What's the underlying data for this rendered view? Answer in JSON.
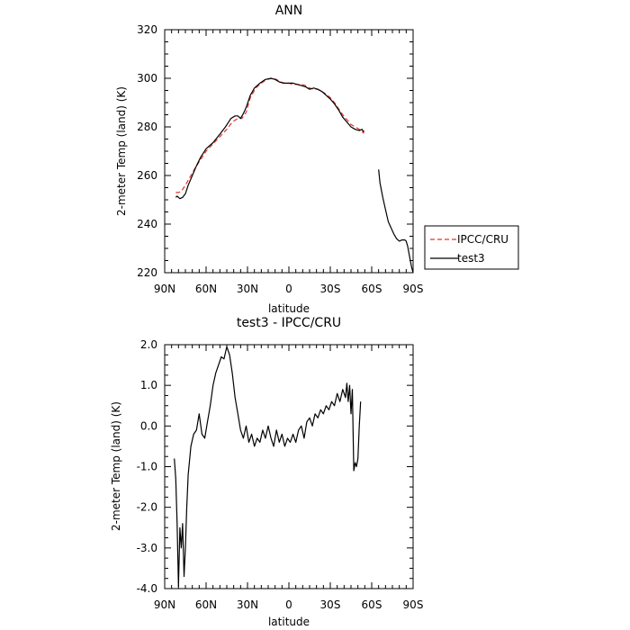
{
  "chart_data": [
    {
      "type": "line",
      "title": "ANN",
      "xlabel": "latitude",
      "ylabel": "2-meter Temp (land) (K)",
      "xlim": [
        90,
        -90
      ],
      "ylim": [
        220,
        320
      ],
      "x_ticks": [
        90,
        60,
        30,
        0,
        -30,
        -60,
        -90
      ],
      "x_tick_labels": [
        "90N",
        "60N",
        "30N",
        "0",
        "30S",
        "60S",
        "90S"
      ],
      "y_ticks": [
        220,
        240,
        260,
        280,
        300,
        320
      ],
      "y_tick_labels": [
        "220",
        "240",
        "260",
        "280",
        "300",
        "320"
      ],
      "legend_position": "right",
      "series": [
        {
          "name": "IPCC/CRU",
          "color": "#e8322a",
          "dash": "dashed",
          "segments": [
            [
              [
                82,
                253
              ],
              [
                80,
                253
              ],
              [
                78,
                253.5
              ],
              [
                75,
                256
              ],
              [
                72,
                259
              ],
              [
                68,
                263
              ],
              [
                64,
                266.5
              ],
              [
                60,
                270
              ],
              [
                55,
                273
              ],
              [
                50,
                276
              ],
              [
                45,
                279
              ],
              [
                41,
                282
              ],
              [
                37,
                283.5
              ],
              [
                34,
                283.5
              ],
              [
                31,
                286
              ],
              [
                28,
                292
              ],
              [
                24,
                296
              ],
              [
                20,
                298
              ],
              [
                16,
                299.5
              ],
              [
                12,
                300
              ],
              [
                9,
                299.5
              ],
              [
                6,
                298.5
              ],
              [
                3,
                298
              ],
              [
                0,
                298
              ],
              [
                -3,
                297.5
              ],
              [
                -6,
                297.5
              ],
              [
                -9,
                297.5
              ],
              [
                -12,
                297
              ],
              [
                -15,
                296
              ],
              [
                -18,
                295.5
              ],
              [
                -21,
                295.5
              ],
              [
                -24,
                294.5
              ],
              [
                -27,
                293.5
              ],
              [
                -30,
                292
              ],
              [
                -33,
                290
              ],
              [
                -36,
                287.5
              ],
              [
                -39,
                285
              ],
              [
                -42,
                283
              ],
              [
                -45,
                281
              ],
              [
                -48,
                280
              ],
              [
                -51,
                279
              ],
              [
                -53,
                278
              ],
              [
                -54,
                277.5
              ],
              [
                -54.5,
                278.5
              ]
            ]
          ]
        },
        {
          "name": "test3",
          "color": "#000000",
          "dash": "solid",
          "segments": [
            [
              [
                82,
                251
              ],
              [
                81,
                251.5
              ],
              [
                79,
                250.5
              ],
              [
                77,
                251
              ],
              [
                75,
                252.5
              ],
              [
                73,
                256
              ],
              [
                70,
                260
              ],
              [
                67,
                264
              ],
              [
                64,
                267.5
              ],
              [
                60,
                271
              ],
              [
                55,
                273.5
              ],
              [
                50,
                277
              ],
              [
                46,
                280
              ],
              [
                42,
                283.5
              ],
              [
                39,
                284.5
              ],
              [
                37,
                284.5
              ],
              [
                35,
                283.5
              ],
              [
                33,
                285.5
              ],
              [
                31,
                288
              ],
              [
                28,
                293
              ],
              [
                25,
                296
              ],
              [
                21,
                298
              ],
              [
                17,
                299.5
              ],
              [
                13,
                300
              ],
              [
                10,
                299.5
              ],
              [
                7,
                298.5
              ],
              [
                4,
                298
              ],
              [
                0,
                298
              ],
              [
                -3,
                298
              ],
              [
                -6,
                297.5
              ],
              [
                -9,
                297
              ],
              [
                -12,
                296.5
              ],
              [
                -15,
                295.5
              ],
              [
                -18,
                296
              ],
              [
                -21,
                295.5
              ],
              [
                -24,
                294.5
              ],
              [
                -27,
                293
              ],
              [
                -30,
                291.5
              ],
              [
                -33,
                289.5
              ],
              [
                -36,
                287
              ],
              [
                -39,
                284
              ],
              [
                -42,
                282
              ],
              [
                -45,
                280
              ],
              [
                -48,
                279
              ],
              [
                -51,
                278.5
              ],
              [
                -53,
                279
              ],
              [
                -54,
                278
              ]
            ],
            [
              [
                -65,
                262.5
              ],
              [
                -66,
                257
              ],
              [
                -68,
                251
              ],
              [
                -70,
                246
              ],
              [
                -72,
                241
              ],
              [
                -74,
                238.5
              ],
              [
                -76,
                236
              ],
              [
                -78,
                234
              ],
              [
                -80,
                233
              ],
              [
                -82,
                233.5
              ],
              [
                -84,
                233.5
              ],
              [
                -85,
                233
              ],
              [
                -86,
                231
              ],
              [
                -87,
                228
              ],
              [
                -88,
                225
              ],
              [
                -89,
                222
              ],
              [
                -90,
                220
              ]
            ]
          ]
        }
      ]
    },
    {
      "type": "line",
      "title": "test3 - IPCC/CRU",
      "xlabel": "latitude",
      "ylabel": "2-meter Temp (land) (K)",
      "xlim": [
        90,
        -90
      ],
      "ylim": [
        -4.0,
        2.0
      ],
      "x_ticks": [
        90,
        60,
        30,
        0,
        -30,
        -60,
        -90
      ],
      "x_tick_labels": [
        "90N",
        "60N",
        "30N",
        "0",
        "30S",
        "60S",
        "90S"
      ],
      "y_ticks": [
        -4.0,
        -3.0,
        -2.0,
        -1.0,
        0.0,
        1.0,
        2.0
      ],
      "y_tick_labels": [
        "-4.0",
        "-3.0",
        "-2.0",
        "-1.0",
        "0.0",
        "1.0",
        "2.0"
      ],
      "series": [
        {
          "color": "#000000",
          "dash": "solid",
          "segments": [
            [
              [
                83,
                -0.8
              ],
              [
                82,
                -1.3
              ],
              [
                81,
                -2.4
              ],
              [
                80,
                -3.95
              ],
              [
                79,
                -2.5
              ],
              [
                78,
                -3.0
              ],
              [
                77,
                -2.4
              ],
              [
                76,
                -3.7
              ],
              [
                75,
                -3.0
              ],
              [
                74,
                -2.0
              ],
              [
                73,
                -1.2
              ],
              [
                71,
                -0.5
              ],
              [
                69,
                -0.2
              ],
              [
                67,
                -0.1
              ],
              [
                65,
                0.3
              ],
              [
                63,
                -0.2
              ],
              [
                61,
                -0.3
              ],
              [
                59,
                0.1
              ],
              [
                57,
                0.5
              ],
              [
                55,
                1.0
              ],
              [
                53,
                1.3
              ],
              [
                51,
                1.5
              ],
              [
                49,
                1.7
              ],
              [
                47,
                1.65
              ],
              [
                45,
                1.95
              ],
              [
                43,
                1.75
              ],
              [
                41,
                1.3
              ],
              [
                39,
                0.7
              ],
              [
                37,
                0.3
              ],
              [
                35,
                -0.1
              ],
              [
                33,
                -0.3
              ],
              [
                31,
                0.0
              ],
              [
                29,
                -0.4
              ],
              [
                27,
                -0.2
              ],
              [
                25,
                -0.5
              ],
              [
                23,
                -0.3
              ],
              [
                21,
                -0.4
              ],
              [
                19,
                -0.1
              ],
              [
                17,
                -0.3
              ],
              [
                15,
                0.0
              ],
              [
                13,
                -0.3
              ],
              [
                11,
                -0.5
              ],
              [
                9,
                -0.1
              ],
              [
                7,
                -0.4
              ],
              [
                5,
                -0.2
              ],
              [
                3,
                -0.5
              ],
              [
                1,
                -0.3
              ],
              [
                -1,
                -0.4
              ],
              [
                -3,
                -0.2
              ],
              [
                -5,
                -0.4
              ],
              [
                -7,
                -0.1
              ],
              [
                -9,
                0.0
              ],
              [
                -11,
                -0.3
              ],
              [
                -13,
                0.1
              ],
              [
                -15,
                0.2
              ],
              [
                -17,
                0.0
              ],
              [
                -19,
                0.3
              ],
              [
                -21,
                0.2
              ],
              [
                -23,
                0.4
              ],
              [
                -25,
                0.3
              ],
              [
                -27,
                0.5
              ],
              [
                -29,
                0.4
              ],
              [
                -31,
                0.6
              ],
              [
                -33,
                0.5
              ],
              [
                -35,
                0.8
              ],
              [
                -37,
                0.6
              ],
              [
                -39,
                0.9
              ],
              [
                -41,
                0.7
              ],
              [
                -42,
                1.05
              ],
              [
                -43,
                0.6
              ],
              [
                -44,
                1.0
              ],
              [
                -45,
                0.3
              ],
              [
                -46,
                0.9
              ],
              [
                -47,
                -1.1
              ],
              [
                -48,
                -0.9
              ],
              [
                -49,
                -1.0
              ],
              [
                -50,
                -0.8
              ],
              [
                -51,
                0.0
              ],
              [
                -52,
                0.6
              ]
            ]
          ]
        }
      ]
    }
  ]
}
